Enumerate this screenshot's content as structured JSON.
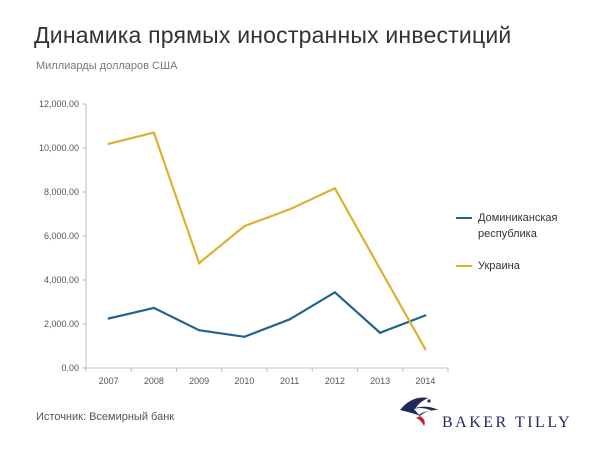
{
  "title": "Динамика прямых иностранных инвестиций",
  "subtitle": "Миллиарды долларов США",
  "source": "Источник: Всемирный банк",
  "logo": {
    "text": "BAKER TILLY",
    "icon": "eagle-logo-icon"
  },
  "colors": {
    "dominican": "#1f6391",
    "ukraine": "#ddb130",
    "axis": "#bfbfbf"
  },
  "chart_data": {
    "type": "line",
    "categories": [
      "2007",
      "2008",
      "2009",
      "2010",
      "2011",
      "2012",
      "2013",
      "2014"
    ],
    "series": [
      {
        "name": "Доминиканская республика",
        "values": [
          2250,
          2730,
          1720,
          1420,
          2210,
          3440,
          1600,
          2390
        ]
      },
      {
        "name": "Украина",
        "values": [
          10190,
          10700,
          4770,
          6450,
          7210,
          8170,
          4500,
          850
        ]
      }
    ],
    "ylim": [
      0,
      12000
    ],
    "yticks": [
      "0.00",
      "2,000.00",
      "4,000.00",
      "6,000.00",
      "8,000.00",
      "10,000.00",
      "12,000.00"
    ],
    "ytick_values": [
      0,
      2000,
      4000,
      6000,
      8000,
      10000,
      12000
    ],
    "grid": false,
    "legend": "right"
  }
}
